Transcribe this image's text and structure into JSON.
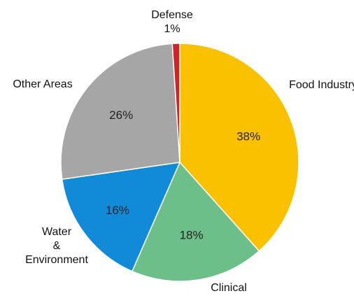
{
  "chart_data": {
    "type": "pie",
    "title": "",
    "unit": "%",
    "slices": [
      {
        "label": "Food Industry",
        "label_lines": [
          "Food Industry"
        ],
        "value": 38,
        "value_label": "38%",
        "color": "#F9C100"
      },
      {
        "label": "Clinical",
        "label_lines": [
          "Clinical"
        ],
        "value": 18,
        "value_label": "18%",
        "color": "#6DBF8A"
      },
      {
        "label": "Water & Environment",
        "label_lines": [
          "Water",
          "&",
          "Environment"
        ],
        "value": 16,
        "value_label": "16%",
        "color": "#118AD8"
      },
      {
        "label": "Other Areas",
        "label_lines": [
          "Other Areas"
        ],
        "value": 26,
        "value_label": "26%",
        "color": "#A6A6A6"
      },
      {
        "label": "Defense",
        "label_lines": [
          "Defense",
          "1%"
        ],
        "value": 1,
        "value_label": "1%",
        "color": "#D2232A"
      }
    ],
    "start": "12 o'clock",
    "direction": "clockwise",
    "legend": "none"
  }
}
